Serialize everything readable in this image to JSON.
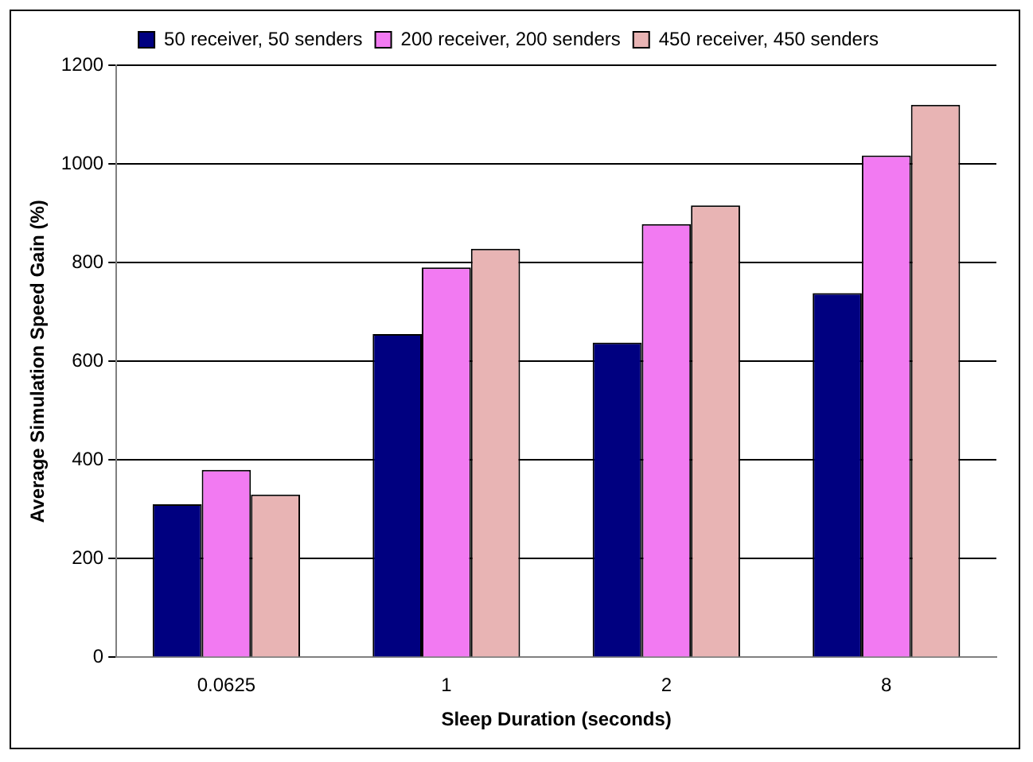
{
  "chart_data": {
    "type": "bar",
    "xlabel": "Sleep Duration (seconds)",
    "ylabel": "Average Simulation Speed Gain (%)",
    "categories": [
      "0.0625",
      "1",
      "2",
      "8"
    ],
    "series": [
      {
        "name": "50 receiver, 50 senders",
        "color": "#000080",
        "values": [
          310,
          655,
          638,
          738
        ]
      },
      {
        "name": "200 receiver, 200 senders",
        "color": "#f27af2",
        "values": [
          380,
          790,
          878,
          1017
        ]
      },
      {
        "name": "450 receiver, 450 senders",
        "color": "#e8b4b4",
        "values": [
          330,
          828,
          916,
          1120
        ]
      }
    ],
    "ylim": [
      0,
      1200
    ],
    "yticks": [
      0,
      200,
      400,
      600,
      800,
      1000,
      1200
    ],
    "grid": "y",
    "legend": "top"
  }
}
